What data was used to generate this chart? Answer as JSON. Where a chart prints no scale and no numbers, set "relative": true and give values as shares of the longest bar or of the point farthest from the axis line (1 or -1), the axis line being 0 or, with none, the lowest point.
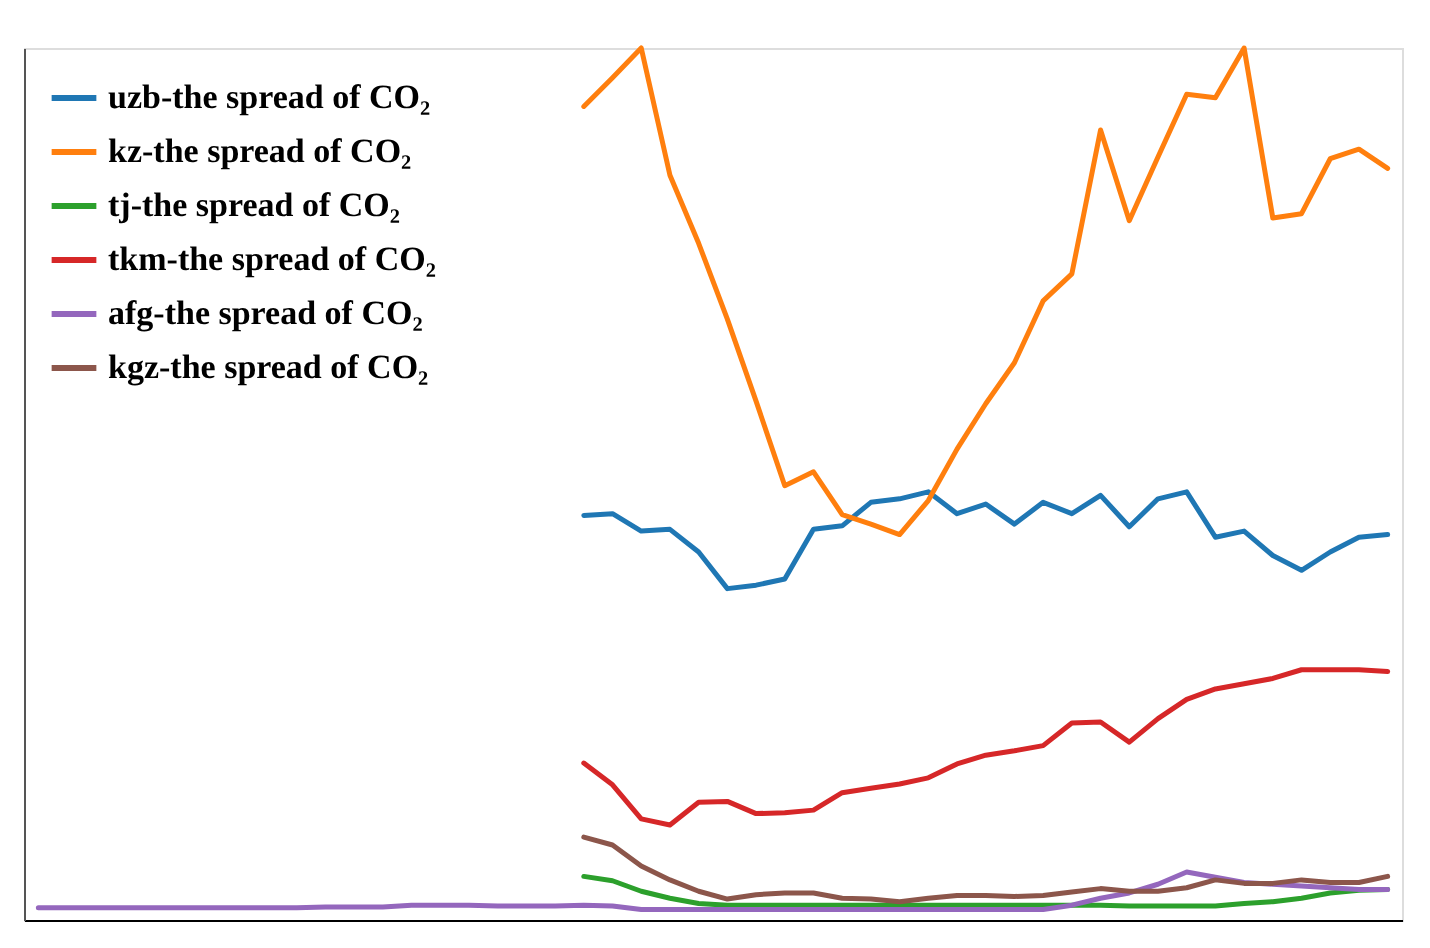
{
  "chart_data": {
    "type": "line",
    "relative": true,
    "categories": [
      null,
      null,
      null,
      null,
      null,
      null,
      null,
      null,
      null,
      null,
      null,
      null,
      null,
      null,
      null,
      null,
      null,
      null,
      null,
      null,
      null,
      null,
      null,
      null,
      null,
      null,
      null,
      null,
      null,
      null,
      null,
      null,
      null,
      null,
      null,
      null,
      null,
      null,
      null,
      null,
      null,
      null,
      null,
      null,
      null,
      null,
      null,
      null
    ],
    "series": [
      {
        "name": "uzb-the spread of CO₂",
        "color": "#1f77b4",
        "values": [
          null,
          null,
          null,
          null,
          null,
          null,
          null,
          null,
          null,
          null,
          null,
          null,
          null,
          null,
          null,
          null,
          null,
          null,
          null,
          0.464,
          0.466,
          0.446,
          0.448,
          0.422,
          0.38,
          0.384,
          0.391,
          0.448,
          0.452,
          0.479,
          0.483,
          0.491,
          0.466,
          0.477,
          0.454,
          0.479,
          0.466,
          0.487,
          0.451,
          0.483,
          0.491,
          0.439,
          0.446,
          0.418,
          0.401,
          0.422,
          0.439,
          0.442
        ]
      },
      {
        "name": "kz-the spread of CO₂",
        "color": "#ff7f0e",
        "values": [
          null,
          null,
          null,
          null,
          null,
          null,
          null,
          null,
          null,
          null,
          null,
          null,
          null,
          null,
          null,
          null,
          null,
          null,
          null,
          0.933,
          0.966,
          1.0,
          0.854,
          0.776,
          0.689,
          0.595,
          0.498,
          0.514,
          0.465,
          0.454,
          0.442,
          0.481,
          0.54,
          0.592,
          0.639,
          0.71,
          0.741,
          0.906,
          0.802,
          0.875,
          0.947,
          0.943,
          1.0,
          0.805,
          0.81,
          0.873,
          0.884,
          0.862
        ]
      },
      {
        "name": "tj-the spread of CO₂",
        "color": "#2ca02c",
        "values": [
          null,
          null,
          null,
          null,
          null,
          null,
          null,
          null,
          null,
          null,
          null,
          null,
          null,
          null,
          null,
          null,
          null,
          null,
          null,
          0.05,
          0.045,
          0.033,
          0.025,
          0.019,
          0.017,
          0.017,
          0.017,
          0.017,
          0.017,
          0.017,
          0.017,
          0.017,
          0.017,
          0.017,
          0.017,
          0.017,
          0.017,
          0.017,
          0.016,
          0.016,
          0.016,
          0.016,
          0.019,
          0.021,
          0.025,
          0.031,
          0.034,
          0.035
        ]
      },
      {
        "name": "tkm-the spread of CO₂",
        "color": "#d62728",
        "values": [
          null,
          null,
          null,
          null,
          null,
          null,
          null,
          null,
          null,
          null,
          null,
          null,
          null,
          null,
          null,
          null,
          null,
          null,
          null,
          0.18,
          0.155,
          0.116,
          0.109,
          0.135,
          0.136,
          0.122,
          0.123,
          0.126,
          0.146,
          0.151,
          0.156,
          0.163,
          0.179,
          0.189,
          0.194,
          0.2,
          0.226,
          0.227,
          0.204,
          0.231,
          0.253,
          0.265,
          0.271,
          0.277,
          0.287,
          0.287,
          0.287,
          0.285
        ]
      },
      {
        "name": "afg-the spread of CO₂",
        "color": "#9467bd",
        "values": [
          0.014,
          0.014,
          0.014,
          0.014,
          0.014,
          0.014,
          0.014,
          0.014,
          0.014,
          0.014,
          0.015,
          0.015,
          0.015,
          0.017,
          0.017,
          0.017,
          0.016,
          0.016,
          0.016,
          0.017,
          0.016,
          0.012,
          0.012,
          0.012,
          0.012,
          0.012,
          0.012,
          0.012,
          0.012,
          0.012,
          0.012,
          0.012,
          0.012,
          0.012,
          0.012,
          0.012,
          0.017,
          0.025,
          0.031,
          0.041,
          0.055,
          0.049,
          0.043,
          0.041,
          0.039,
          0.037,
          0.035,
          0.035
        ]
      },
      {
        "name": "kgz-the spread of CO₂",
        "color": "#8c564b",
        "values": [
          null,
          null,
          null,
          null,
          null,
          null,
          null,
          null,
          null,
          null,
          null,
          null,
          null,
          null,
          null,
          null,
          null,
          null,
          null,
          0.095,
          0.086,
          0.062,
          0.046,
          0.033,
          0.024,
          0.029,
          0.031,
          0.031,
          0.025,
          0.024,
          0.021,
          0.025,
          0.028,
          0.028,
          0.027,
          0.028,
          0.032,
          0.036,
          0.033,
          0.033,
          0.037,
          0.046,
          0.042,
          0.042,
          0.046,
          0.043,
          0.043,
          0.05
        ]
      }
    ],
    "legend": "top left",
    "grid": false,
    "marker": "none",
    "line_style": "solid"
  }
}
